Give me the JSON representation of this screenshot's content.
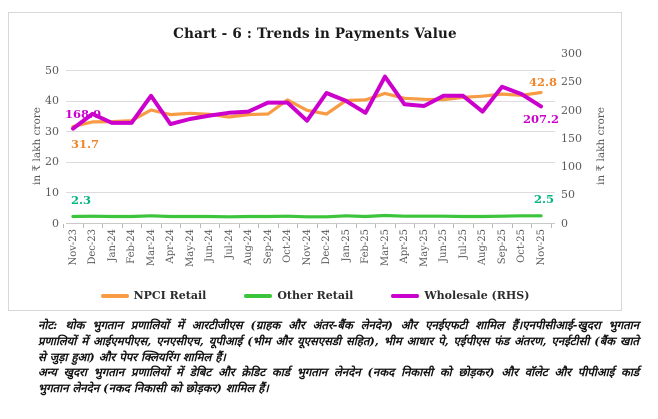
{
  "chart": {
    "title": "Chart - 6 : Trends in Payments Value",
    "left_axis": {
      "title": "in ₹ lakh crore",
      "ticks": [
        0,
        10,
        20,
        30,
        40,
        50
      ],
      "max": 50
    },
    "right_axis": {
      "title": "in ₹ lakh crore",
      "ticks": [
        0,
        50,
        100,
        150,
        200,
        250,
        300
      ],
      "max": 300
    }
  },
  "chart_data": {
    "type": "line",
    "title": "Chart - 6 : Trends in Payments Value",
    "ylabel_left": "in ₹ lakh crore",
    "ylabel_right": "in ₹ lakh crore",
    "ylim_left": [
      0,
      50
    ],
    "ylim_right": [
      0,
      300
    ],
    "grid": true,
    "legend_position": "bottom",
    "categories": [
      "Nov-23",
      "Dec-23",
      "Jan-24",
      "Feb-24",
      "Mar-24",
      "Apr-24",
      "May-24",
      "Jun-24",
      "Jul-24",
      "Aug-24",
      "Sep-24",
      "Oct-24",
      "Nov-24",
      "Dec-24",
      "Jan-25",
      "Feb-25",
      "Mar-25",
      "Apr-25",
      "May-25",
      "Jun-25",
      "Jul-25",
      "Aug-25",
      "Sep-25",
      "Oct-25",
      "Nov-25"
    ],
    "series": [
      {
        "name": "NPCI Retail",
        "axis": "left",
        "color": "#F89B45",
        "width": 3.2,
        "values": [
          31.7,
          33.2,
          33.3,
          33.6,
          37.1,
          35.6,
          36.0,
          35.7,
          34.8,
          35.6,
          35.8,
          40.4,
          37.0,
          35.8,
          40.2,
          40.4,
          42.5,
          40.9,
          40.6,
          40.5,
          41.2,
          41.6,
          42.3,
          41.9,
          42.8
        ]
      },
      {
        "name": "Other Retail",
        "axis": "left",
        "color": "#3CC43C",
        "width": 3.2,
        "values": [
          2.3,
          2.4,
          2.3,
          2.3,
          2.5,
          2.3,
          2.3,
          2.3,
          2.2,
          2.3,
          2.3,
          2.4,
          2.2,
          2.2,
          2.5,
          2.3,
          2.6,
          2.4,
          2.4,
          2.4,
          2.3,
          2.3,
          2.4,
          2.5,
          2.5
        ]
      },
      {
        "name": "Wholesale (RHS)",
        "axis": "right",
        "color": "#CC00CC",
        "width": 4,
        "values": [
          168.0,
          194,
          178,
          178,
          226,
          176,
          185,
          191,
          196,
          198,
          214,
          214,
          182,
          231,
          217,
          196,
          260,
          211,
          208,
          226,
          226,
          198,
          242,
          229,
          207.2
        ]
      }
    ],
    "point_labels": [
      {
        "text": "168.0",
        "color": "#CC00CC"
      },
      {
        "text": "31.7",
        "color": "#F0862B"
      },
      {
        "text": "2.3",
        "color": "#00B581"
      },
      {
        "text": "42.8",
        "color": "#F0862B"
      },
      {
        "text": "207.2",
        "color": "#CC00CC"
      },
      {
        "text": "2.5",
        "color": "#00B581"
      }
    ]
  },
  "legend": {
    "items": [
      {
        "label": "NPCI Retail",
        "color": "#F89B45"
      },
      {
        "label": "Other Retail",
        "color": "#3CC43C"
      },
      {
        "label": "Wholesale (RHS)",
        "color": "#CC00CC"
      }
    ]
  },
  "notes": {
    "lines": [
      "नोट: थोक भुगतान प्रणालियों में आरटीजीएस (ग्राहक और अंतर-बैंक लेनदेन) और एनईएफटी शामिल हैं।एनपीसीआई-खुदरा भुगतान",
      "प्रणालियों में आईएमपीएस, एनएसीएच, यूपीआई (भीम और यूएसएसडी सहित), भीम आधार पे, एईपीएस फंड अंतरण, एनईटीसी (बैंक खाते",
      "से जुड़ा हुआ) और पेपर क्लियरिंग शामिल हैं।",
      "अन्य खुदरा भुगतान प्रणालियों में डेबिट और क्रेडिट कार्ड भुगतान लेनदेन (नकद निकासी को छोड़कर) और वॉलेट और पीपीआई कार्ड",
      "भुगतान लेनदेन (नकद निकासी को छोड़कर) शामिल हैं।"
    ]
  }
}
